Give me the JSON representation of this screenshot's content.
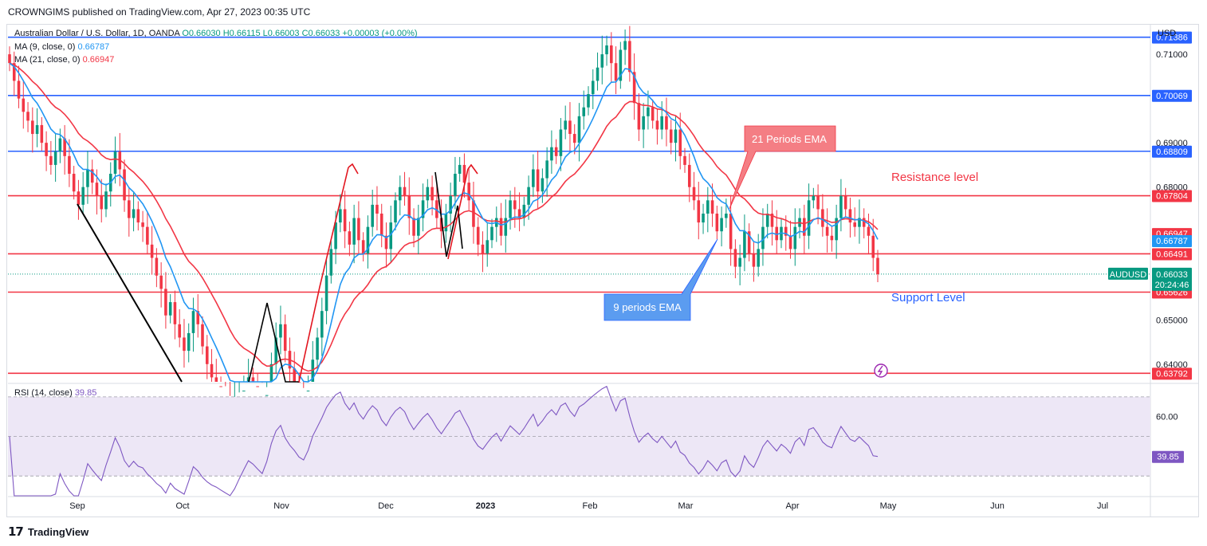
{
  "header": {
    "publisher_line": "CROWNGIMS published on TradingView.com, Apr 27, 2023 00:35 UTC"
  },
  "legend": {
    "symbol_line": "Australian Dollar / U.S. Dollar, 1D, OANDA",
    "open": "O0.66030",
    "high": "H0.66115",
    "low": "L0.66003",
    "close": "C0.66033",
    "change": "+0.00003 (+0.00%)",
    "ma9_label": "MA (9, close, 0)",
    "ma9_value": "0.66787",
    "ma21_label": "MA (21, close, 0)",
    "ma21_value": "0.66947",
    "rsi_label": "RSI (14, close)",
    "rsi_value": "39.85"
  },
  "axis": {
    "currency": "USD",
    "price_ticks": [
      "0.71000",
      "0.69000",
      "0.68000",
      "0.65000",
      "0.64000"
    ],
    "price_tick_values": [
      0.71,
      0.69,
      0.68,
      0.65,
      0.64
    ],
    "rsi_ticks": [
      "60.00"
    ],
    "months": [
      "Sep",
      "Oct",
      "Nov",
      "Dec",
      "2023",
      "Feb",
      "Mar",
      "Apr",
      "May",
      "Jun",
      "Jul"
    ]
  },
  "levels": [
    {
      "label": "0.71386",
      "value": 0.71386,
      "color": "#2962ff"
    },
    {
      "label": "0.70069",
      "value": 0.70069,
      "color": "#2962ff"
    },
    {
      "label": "0.68809",
      "value": 0.68809,
      "color": "#2962ff"
    },
    {
      "label": "0.67804",
      "value": 0.67804,
      "color": "#f23645"
    },
    {
      "label": "0.66491",
      "value": 0.66491,
      "color": "#f23645"
    },
    {
      "label": "0.65626",
      "value": 0.65626,
      "color": "#f23645"
    },
    {
      "label": "0.63792",
      "value": 0.63792,
      "color": "#f23645"
    }
  ],
  "price_badges": {
    "ma21": "0.66947",
    "ma9": "0.66787",
    "symbol": "AUDUSD",
    "last_price": "0.66033",
    "countdown": "20:24:46",
    "rsi": "39.85"
  },
  "annotations": {
    "ema21_callout": "21 Periods EMA",
    "ema9_callout": "9 periods EMA",
    "resistance": "Resistance level",
    "support": "Support Level"
  },
  "footer": {
    "brand": "TradingView"
  },
  "colors": {
    "up": "#089981",
    "down": "#f23645",
    "ema9": "#2196f3",
    "ema21": "#f23645",
    "rsi": "#7e57c2",
    "rsi_band": "#ede7f6"
  },
  "chart_data": {
    "type": "candlestick",
    "symbol": "AUDUSD",
    "timeframe": "1D",
    "closes": [
      0.708,
      0.704,
      0.7,
      0.697,
      0.695,
      0.692,
      0.694,
      0.69,
      0.687,
      0.685,
      0.688,
      0.691,
      0.687,
      0.683,
      0.679,
      0.676,
      0.68,
      0.684,
      0.681,
      0.678,
      0.675,
      0.679,
      0.683,
      0.688,
      0.684,
      0.677,
      0.673,
      0.675,
      0.672,
      0.671,
      0.667,
      0.664,
      0.66,
      0.657,
      0.651,
      0.654,
      0.649,
      0.646,
      0.643,
      0.647,
      0.652,
      0.649,
      0.644,
      0.64,
      0.637,
      0.635,
      0.632,
      0.629,
      0.626,
      0.628,
      0.631,
      0.634,
      0.637,
      0.635,
      0.632,
      0.629,
      0.633,
      0.64,
      0.646,
      0.649,
      0.643,
      0.639,
      0.636,
      0.632,
      0.63,
      0.634,
      0.641,
      0.646,
      0.652,
      0.66,
      0.666,
      0.672,
      0.675,
      0.67,
      0.667,
      0.673,
      0.668,
      0.665,
      0.671,
      0.676,
      0.674,
      0.669,
      0.666,
      0.672,
      0.677,
      0.68,
      0.678,
      0.673,
      0.669,
      0.673,
      0.677,
      0.68,
      0.677,
      0.673,
      0.67,
      0.674,
      0.678,
      0.683,
      0.685,
      0.681,
      0.677,
      0.671,
      0.667,
      0.665,
      0.668,
      0.671,
      0.673,
      0.669,
      0.673,
      0.677,
      0.675,
      0.673,
      0.676,
      0.68,
      0.684,
      0.679,
      0.682,
      0.686,
      0.689,
      0.687,
      0.693,
      0.695,
      0.692,
      0.69,
      0.696,
      0.698,
      0.701,
      0.704,
      0.707,
      0.71,
      0.712,
      0.708,
      0.704,
      0.711,
      0.713,
      0.706,
      0.699,
      0.693,
      0.696,
      0.698,
      0.695,
      0.693,
      0.696,
      0.693,
      0.69,
      0.693,
      0.687,
      0.685,
      0.68,
      0.677,
      0.672,
      0.674,
      0.677,
      0.674,
      0.67,
      0.673,
      0.674,
      0.666,
      0.662,
      0.664,
      0.67,
      0.665,
      0.662,
      0.666,
      0.671,
      0.674,
      0.671,
      0.668,
      0.671,
      0.669,
      0.666,
      0.671,
      0.673,
      0.669,
      0.677,
      0.678,
      0.675,
      0.671,
      0.669,
      0.668,
      0.673,
      0.678,
      0.675,
      0.672,
      0.671,
      0.673,
      0.671,
      0.669,
      0.664,
      0.6603
    ],
    "ema9_last": 0.66787,
    "ema21_last": 0.66947,
    "rsi_last": 39.85,
    "rsi_bands": [
      70,
      50,
      30
    ],
    "horizontal_levels": [
      0.71386,
      0.70069,
      0.68809,
      0.67804,
      0.66491,
      0.65626,
      0.63792
    ],
    "price_range": [
      0.636,
      0.7165
    ],
    "rsi_range": [
      20,
      76
    ]
  }
}
